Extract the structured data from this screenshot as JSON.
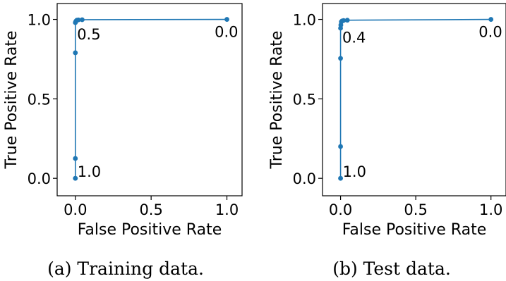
{
  "chart_data": [
    {
      "type": "line",
      "caption": "(a) Training data.",
      "xlabel": "False Positive Rate",
      "ylabel": "True Positive Rate",
      "xlim": [
        -0.12,
        1.1
      ],
      "ylim": [
        -0.11,
        1.1
      ],
      "xticks": [
        0.0,
        0.5,
        1.0
      ],
      "xtick_labels": [
        "0.0",
        "0.5",
        "1.0"
      ],
      "yticks": [
        0.0,
        0.5,
        1.0
      ],
      "ytick_labels": [
        "0.0",
        "0.5",
        "1.0"
      ],
      "grid": false,
      "line_color": "#1f77b4",
      "series": [
        {
          "x": [
            0.0,
            0.0,
            0.0,
            0.0,
            0.002,
            0.005,
            0.01,
            0.02,
            0.045,
            1.0
          ],
          "y": [
            0.0,
            0.125,
            0.79,
            0.98,
            0.985,
            0.99,
            0.995,
            0.997,
            0.998,
            1.0
          ]
        }
      ],
      "annotations": [
        {
          "text": "1.0",
          "x": 0.0,
          "y": 0.0
        },
        {
          "text": "0.5",
          "x": 0.002,
          "y": 0.985
        },
        {
          "text": "0.0",
          "x": 1.0,
          "y": 1.0
        }
      ]
    },
    {
      "type": "line",
      "caption": "(b) Test data.",
      "xlabel": "False Positive Rate",
      "ylabel": "True Positive Rate",
      "xlim": [
        -0.12,
        1.1
      ],
      "ylim": [
        -0.11,
        1.1
      ],
      "xticks": [
        0.0,
        0.5,
        1.0
      ],
      "xtick_labels": [
        "0.0",
        "0.5",
        "1.0"
      ],
      "yticks": [
        0.0,
        0.5,
        1.0
      ],
      "ytick_labels": [
        "0.0",
        "0.5",
        "1.0"
      ],
      "grid": false,
      "line_color": "#1f77b4",
      "series": [
        {
          "x": [
            0.0,
            0.0,
            0.0,
            0.0,
            0.002,
            0.005,
            0.01,
            0.02,
            0.045,
            1.0
          ],
          "y": [
            0.0,
            0.2,
            0.755,
            0.945,
            0.965,
            0.985,
            0.99,
            0.993,
            0.995,
            1.0
          ]
        }
      ],
      "annotations": [
        {
          "text": "1.0",
          "x": 0.0,
          "y": 0.0
        },
        {
          "text": "0.4",
          "x": 0.002,
          "y": 0.965
        },
        {
          "text": "0.0",
          "x": 1.0,
          "y": 1.0
        }
      ]
    }
  ]
}
